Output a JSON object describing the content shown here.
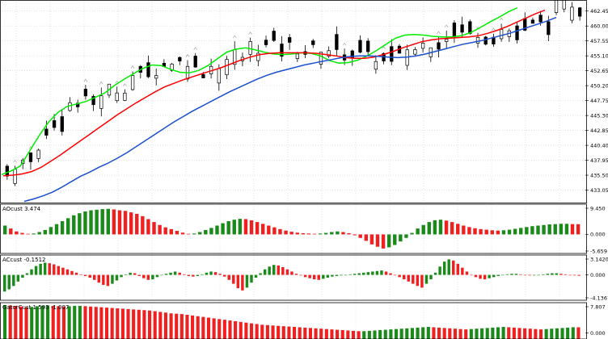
{
  "chart_data": [
    {
      "type": "candlestick",
      "title": "",
      "ylim": [
        431.0,
        464.0
      ],
      "yticks": [
        "462.45",
        "460.00",
        "457.55",
        "455.10",
        "452.65",
        "450.20",
        "447.75",
        "445.30",
        "442.85",
        "440.40",
        "437.95",
        "435.50",
        "433.05"
      ],
      "bars": 74,
      "series": [
        {
          "name": "",
          "color": "#00ee00",
          "values": [
            435.6,
            436.2,
            437.0,
            439.5,
            442.0,
            444.2,
            445.8,
            446.8,
            447.2,
            447.6,
            448.3,
            449.0,
            450.2,
            451.2,
            452.1,
            453.0,
            453.6,
            453.5,
            452.9,
            452.4,
            452.3,
            452.7,
            453.5,
            454.6,
            455.7,
            456.2,
            456.4,
            456.1,
            455.7,
            455.4,
            455.3,
            455.4,
            455.6,
            455.5,
            455.1,
            454.3,
            453.9,
            454.0,
            454.4,
            455.1,
            456.0,
            457.0,
            458.0,
            458.5,
            458.6,
            458.5,
            458.3,
            458.2,
            458.2,
            458.4,
            458.9,
            459.7,
            460.6,
            461.4,
            462.3,
            463.0
          ]
        },
        {
          "name": "",
          "color": "#ff0000",
          "values": [
            435.4,
            435.5,
            435.7,
            436.1,
            436.8,
            437.8,
            438.8,
            439.9,
            441.0,
            442.1,
            443.2,
            444.3,
            445.4,
            446.4,
            447.4,
            448.3,
            449.2,
            450.0,
            450.6,
            451.2,
            451.7,
            452.2,
            452.7,
            453.2,
            453.8,
            454.4,
            454.9,
            455.3,
            455.5,
            455.6,
            455.6,
            455.6,
            455.6,
            455.5,
            455.3,
            455.1,
            454.8,
            454.7,
            454.7,
            454.9,
            455.3,
            455.8,
            456.4,
            456.9,
            457.4,
            457.7,
            457.9,
            458.0,
            458.1,
            458.2,
            458.4,
            458.8,
            459.3,
            459.9,
            460.6,
            461.3,
            462.0,
            462.6
          ]
        },
        {
          "name": "",
          "color": "#1a4fd0",
          "values": [
            431.2,
            431.6,
            432.1,
            432.7,
            433.5,
            434.4,
            435.3,
            436.0,
            436.8,
            437.5,
            438.3,
            439.2,
            440.2,
            441.2,
            442.2,
            443.2,
            444.2,
            445.1,
            446.0,
            446.8,
            447.6,
            448.4,
            449.2,
            449.9,
            450.6,
            451.3,
            451.9,
            452.4,
            452.8,
            453.2,
            453.6,
            453.9,
            454.2,
            454.5,
            454.8,
            455.0,
            455.1,
            455.1,
            455.0,
            454.9,
            454.8,
            454.9,
            455.1,
            455.4,
            455.8,
            456.2,
            456.6,
            457.0,
            457.3,
            457.6,
            458.0,
            458.4,
            458.8,
            459.3,
            459.8,
            460.3,
            460.8,
            461.4
          ]
        }
      ]
    },
    {
      "type": "bar",
      "title": "AOcust 3.474",
      "ylim": [
        -5.659,
        9.45
      ],
      "yticks": [
        "9.450",
        "0.000",
        "-5.659"
      ],
      "up_color": "#1a8a1a",
      "down_color": "#ee2020",
      "values": [
        3,
        2,
        1,
        0.5,
        0.2,
        0.3,
        0.8,
        1.5,
        2.5,
        3.5,
        4.5,
        5.5,
        6.5,
        7.2,
        7.8,
        8.2,
        8.4,
        8.6,
        8.7,
        8.5,
        8.2,
        8.0,
        7.5,
        7.0,
        6.2,
        5.2,
        4.2,
        3.2,
        2.4,
        1.8,
        1.2,
        0.6,
        0.2,
        0.3,
        0.8,
        1.5,
        2.2,
        3.0,
        3.8,
        4.5,
        5.0,
        5.3,
        5.2,
        4.8,
        4.2,
        3.6,
        3.0,
        2.4,
        1.8,
        1.3,
        0.9,
        0.6,
        0.4,
        0.3,
        0.2,
        0.3,
        0.5,
        0.8,
        1.0,
        0.8,
        0.4,
        -0.3,
        -1.2,
        -2.2,
        -3.4,
        -4.2,
        -4.8,
        -4.4,
        -3.6,
        -2.4,
        -1.2,
        0.5,
        2.0,
        3.2,
        4.2,
        4.8,
        5.0,
        4.7,
        4.2,
        3.6,
        3.0,
        2.5,
        2.1,
        1.8,
        1.6,
        1.4,
        1.3,
        1.4,
        1.6,
        1.9,
        2.2,
        2.5,
        2.8,
        3.0,
        3.2,
        3.4,
        3.5,
        3.6,
        3.6,
        3.5,
        3.47
      ]
    },
    {
      "type": "bar",
      "title": "ACcust -0.1512",
      "ylim": [
        -4.1367,
        3.142
      ],
      "yticks": [
        "3.1420",
        "0.000",
        "-4.1367"
      ],
      "up_color": "#1a8a1a",
      "down_color": "#ee2020",
      "values": [
        -3.0,
        -2.6,
        -2.0,
        -1.2,
        -0.5,
        0.3,
        1.0,
        1.6,
        2.0,
        2.2,
        2.1,
        1.9,
        1.6,
        1.3,
        1.0,
        0.7,
        0.4,
        0.1,
        -0.2,
        -0.5,
        -0.9,
        -1.4,
        -1.8,
        -2.0,
        -1.6,
        -1.0,
        -0.4,
        0.1,
        0.4,
        0.3,
        -0.2,
        -0.6,
        -0.9,
        -0.8,
        -0.4,
        0.0,
        0.2,
        0.4,
        0.6,
        0.4,
        0.1,
        -0.2,
        -0.3,
        -0.2,
        0.1,
        0.4,
        0.6,
        0.5,
        0.2,
        -0.3,
        -0.9,
        -1.6,
        -2.4,
        -2.8,
        -2.3,
        -1.4,
        -0.5,
        0.3,
        1.0,
        1.5,
        1.8,
        1.7,
        1.4,
        1.0,
        0.6,
        0.2,
        -0.1,
        -0.4,
        -0.6,
        -0.8,
        -0.9,
        -0.7,
        -0.5,
        -0.3,
        -0.2,
        -0.1,
        0.0,
        0.1,
        0.2,
        0.3,
        0.4,
        0.5,
        0.6,
        0.7,
        0.8,
        0.6,
        0.3,
        0.0,
        -0.4,
        -0.8,
        -1.2,
        -1.6,
        -2.0,
        -2.3,
        -1.6,
        -0.8,
        0.4,
        1.5,
        2.4,
        2.8,
        2.6,
        2.0,
        1.3,
        0.6,
        0.0,
        -0.4,
        -0.7,
        -0.8,
        -0.6,
        -0.4,
        -0.2,
        0.0,
        0.1,
        0.2,
        0.2,
        0.1,
        0.0,
        -0.1,
        -0.1,
        0.0,
        0.1,
        0.2,
        0.3,
        0.3,
        0.2,
        0.1,
        0.0,
        -0.1,
        -0.15
      ]
    },
    {
      "type": "bar",
      "title": "GatorCust 1.593 -1.007",
      "ylim": [
        -1.007,
        7.807
      ],
      "yticks": [
        "7.807",
        "0.000"
      ],
      "up_color": "#1a8a1a",
      "down_color": "#ee2020",
      "values": [
        7.8,
        7.7,
        7.6,
        7.4,
        7.2,
        7.3,
        7.5,
        7.6,
        7.7,
        7.6,
        7.5,
        7.4,
        7.5,
        7.6,
        7.6,
        7.5,
        7.4,
        7.3,
        7.2,
        7.1,
        7.0,
        6.9,
        6.8,
        6.7,
        6.6,
        6.5,
        6.4,
        6.3,
        6.1,
        5.9,
        5.7,
        5.5,
        5.4,
        5.3,
        5.1,
        4.9,
        4.7,
        4.5,
        4.3,
        4.1,
        3.9,
        3.7,
        3.5,
        3.3,
        3.1,
        2.9,
        2.7,
        2.5,
        2.3,
        2.2,
        2.1,
        2.0,
        1.9,
        1.8,
        1.7,
        1.6,
        1.5,
        1.4,
        1.3,
        1.2,
        1.1,
        1.0,
        0.9,
        0.8,
        0.7,
        0.6,
        0.5,
        0.5,
        0.6,
        0.7,
        0.8,
        0.9,
        1.0,
        1.1,
        1.2,
        1.3,
        1.4,
        1.5,
        1.6,
        1.7,
        1.6,
        1.5,
        1.4,
        1.3,
        1.2,
        1.1,
        1.0,
        1.1,
        1.2,
        1.3,
        1.4,
        1.5,
        1.6,
        1.7,
        1.6,
        1.5,
        1.4,
        1.3,
        1.2,
        1.1,
        1.0,
        1.1,
        1.2,
        1.3,
        1.4,
        1.5,
        1.6,
        1.59
      ]
    }
  ]
}
